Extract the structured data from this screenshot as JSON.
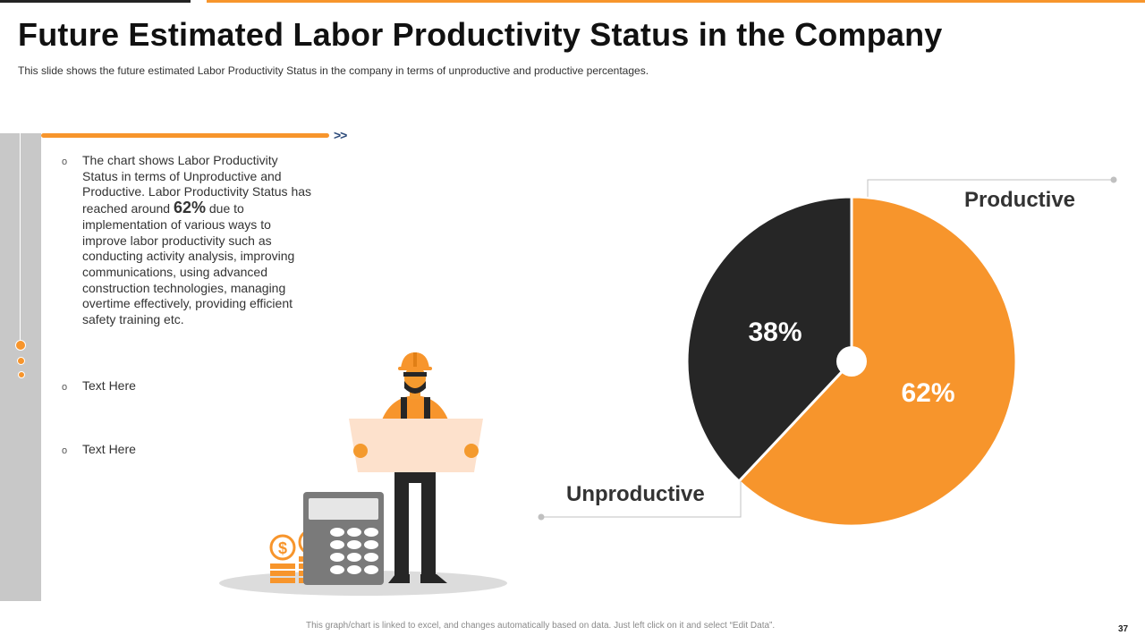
{
  "slide": {
    "title": "Future Estimated Labor Productivity Status in the Company",
    "subtitle": "This slide shows the future  estimated Labor Productivity  Status in the company in terms of unproductive  and productive  percentages.",
    "chevrons": ">>",
    "page_number": "37",
    "footer_note": "This graph/chart is linked to excel, and changes automatically based on data. Just left click on it and select “Edit Data”."
  },
  "bullets": {
    "marker": "o",
    "first": {
      "before": "The chart shows Labor Productivity Status in terms of Unproductive and Productive. Labor Productivity Status has reached around ",
      "highlight": "62%",
      "after": " due to implementation of various ways to improve labor productivity such as conducting activity analysis, improving communications, using advanced construction technologies, managing overtime effectively, providing efficient safety training etc."
    },
    "second": "Text Here",
    "third": "Text Here"
  },
  "colors": {
    "accent": "#f7952c",
    "dark": "#262626",
    "panel_gray": "#c8c8c8"
  },
  "illustration": {
    "subject": "construction-worker-with-blueprint-and-calculator",
    "currency_symbol": "$"
  },
  "chart_data": {
    "type": "pie",
    "title": "",
    "categories": [
      "Productive",
      "Unproductive"
    ],
    "values": [
      62,
      38
    ],
    "value_labels": [
      "62%",
      "38%"
    ],
    "colors": [
      "#f7952c",
      "#262626"
    ],
    "start_angle_deg": 0,
    "direction": "clockwise"
  }
}
